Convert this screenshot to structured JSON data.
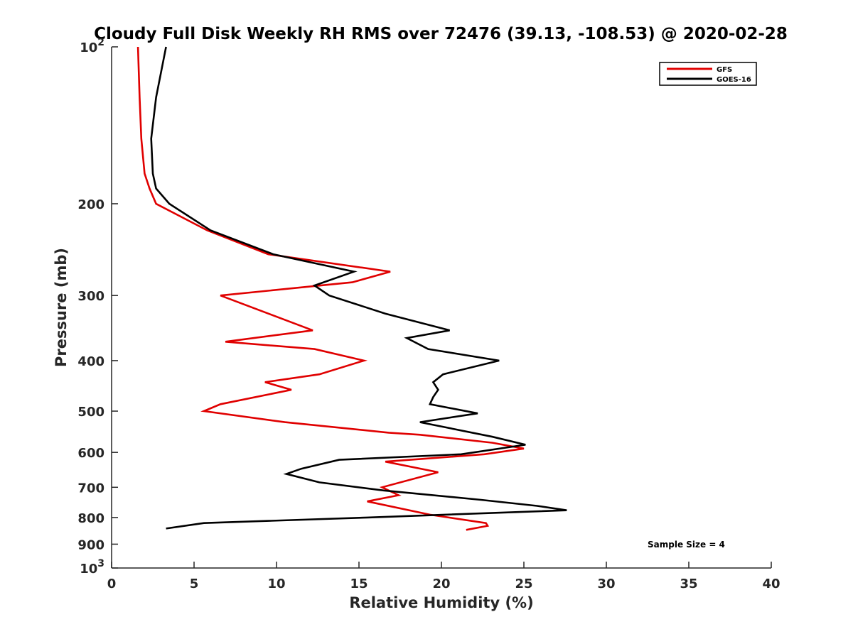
{
  "chart_data": {
    "type": "line",
    "title": "Cloudy Full Disk Weekly RH RMS over 72476 (39.13, -108.53) @ 2020-02-28",
    "xlabel": "Relative Humidity (%)",
    "ylabel": "Pressure (mb)",
    "xlim": [
      0,
      40
    ],
    "ylim": [
      100,
      1000
    ],
    "yscale": "log",
    "y_reversed": true,
    "grid": false,
    "legend_position": "top-right",
    "x_ticks": [
      "0",
      "5",
      "10",
      "15",
      "20",
      "25",
      "30",
      "35",
      "40"
    ],
    "x_tick_values": [
      0,
      5,
      10,
      15,
      20,
      25,
      30,
      35,
      40
    ],
    "y_ticks": [
      {
        "value": 100,
        "base": "10",
        "exp": "2"
      },
      {
        "value": 200,
        "label": "200"
      },
      {
        "value": 300,
        "label": "300"
      },
      {
        "value": 400,
        "label": "400"
      },
      {
        "value": 500,
        "label": "500"
      },
      {
        "value": 600,
        "label": "600"
      },
      {
        "value": 700,
        "label": "700"
      },
      {
        "value": 800,
        "label": "800"
      },
      {
        "value": 900,
        "label": "900"
      },
      {
        "value": 1000,
        "base": "10",
        "exp": "3"
      }
    ],
    "annotation": "Sample Size = 4",
    "series": [
      {
        "name": "GFS",
        "color": "#e00000",
        "points": [
          [
            1.6,
            100
          ],
          [
            1.7,
            125
          ],
          [
            1.8,
            150
          ],
          [
            2.0,
            175
          ],
          [
            2.3,
            187
          ],
          [
            2.7,
            200
          ],
          [
            5.8,
            225
          ],
          [
            9.5,
            250
          ],
          [
            16.9,
            270
          ],
          [
            14.6,
            283
          ],
          [
            6.6,
            300
          ],
          [
            12.2,
            350
          ],
          [
            6.9,
            368
          ],
          [
            12.3,
            380
          ],
          [
            15.3,
            400
          ],
          [
            12.6,
            425
          ],
          [
            9.3,
            440
          ],
          [
            10.9,
            455
          ],
          [
            6.6,
            485
          ],
          [
            5.6,
            500
          ],
          [
            10.5,
            525
          ],
          [
            16.8,
            550
          ],
          [
            18.7,
            555
          ],
          [
            23.1,
            575
          ],
          [
            25.0,
            590
          ],
          [
            22.6,
            605
          ],
          [
            16.6,
            625
          ],
          [
            19.8,
            655
          ],
          [
            16.4,
            700
          ],
          [
            17.4,
            725
          ],
          [
            15.5,
            745
          ],
          [
            19.3,
            790
          ],
          [
            22.7,
            820
          ],
          [
            22.8,
            830
          ],
          [
            21.5,
            845
          ]
        ]
      },
      {
        "name": "GOES-16",
        "color": "#000000",
        "points": [
          [
            3.3,
            100
          ],
          [
            2.7,
            125
          ],
          [
            2.4,
            150
          ],
          [
            2.5,
            175
          ],
          [
            2.7,
            187
          ],
          [
            3.5,
            200
          ],
          [
            6.0,
            225
          ],
          [
            9.8,
            250
          ],
          [
            14.7,
            270
          ],
          [
            12.3,
            287
          ],
          [
            13.2,
            300
          ],
          [
            16.6,
            325
          ],
          [
            20.5,
            350
          ],
          [
            17.9,
            362
          ],
          [
            19.2,
            380
          ],
          [
            23.5,
            400
          ],
          [
            20.1,
            425
          ],
          [
            19.5,
            440
          ],
          [
            19.8,
            455
          ],
          [
            19.5,
            470
          ],
          [
            19.3,
            485
          ],
          [
            22.2,
            505
          ],
          [
            18.7,
            525
          ],
          [
            23.1,
            560
          ],
          [
            25.1,
            580
          ],
          [
            21.2,
            605
          ],
          [
            13.8,
            620
          ],
          [
            11.5,
            645
          ],
          [
            10.6,
            660
          ],
          [
            12.6,
            685
          ],
          [
            16.5,
            710
          ],
          [
            22.4,
            740
          ],
          [
            25.8,
            760
          ],
          [
            27.6,
            775
          ],
          [
            15.5,
            800
          ],
          [
            5.6,
            820
          ],
          [
            3.3,
            840
          ]
        ]
      }
    ]
  }
}
